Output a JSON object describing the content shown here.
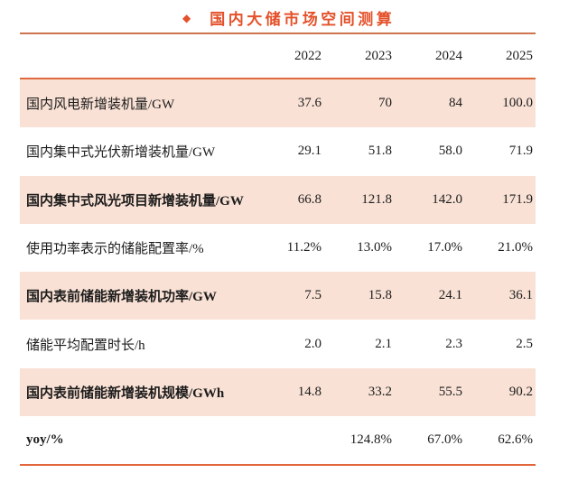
{
  "title": {
    "bullet": "◆",
    "text": "国内大储市场空间测算"
  },
  "colors": {
    "accent_orange": "#e4512a",
    "rule_top": "#cd7450",
    "rule_header": "#df6a3d",
    "row_highlight": "#f9e1d5",
    "text": "#1c1c1c"
  },
  "table": {
    "year_headers": [
      "2022",
      "2023",
      "2024",
      "2025"
    ],
    "rows": [
      {
        "label": "国内风电新增装机量/GW",
        "values": [
          "37.6",
          "70",
          "84",
          "100.0"
        ]
      },
      {
        "label": "国内集中式光伏新增装机量/GW",
        "values": [
          "29.1",
          "51.8",
          "58.0",
          "71.9"
        ]
      },
      {
        "label": "国内集中式风光项目新增装机量/GW",
        "values": [
          "66.8",
          "121.8",
          "142.0",
          "171.9"
        ]
      },
      {
        "label": "使用功率表示的储能配置率/%",
        "values": [
          "11.2%",
          "13.0%",
          "17.0%",
          "21.0%"
        ]
      },
      {
        "label": "国内表前储能新增装机功率/GW",
        "values": [
          "7.5",
          "15.8",
          "24.1",
          "36.1"
        ]
      },
      {
        "label": "储能平均配置时长/h",
        "values": [
          "2.0",
          "2.1",
          "2.3",
          "2.5"
        ]
      },
      {
        "label": "国内表前储能新增装机规模/GWh",
        "values": [
          "14.8",
          "33.2",
          "55.5",
          "90.2"
        ]
      },
      {
        "label": "yoy/%",
        "values": [
          "",
          "124.8%",
          "67.0%",
          "62.6%"
        ]
      }
    ]
  }
}
